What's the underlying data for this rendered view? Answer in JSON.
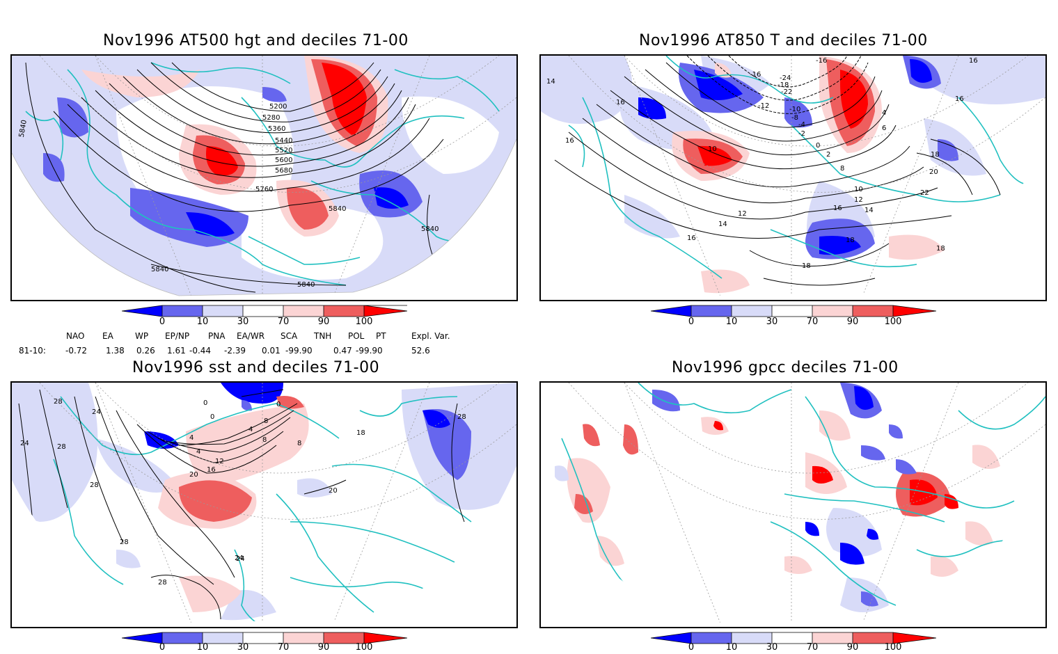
{
  "panels": [
    {
      "title": "Nov1996 AT500 hgt and deciles 71-00",
      "contour_labels": [
        "5200",
        "5280",
        "5360",
        "5440",
        "5520",
        "5600",
        "5680",
        "5760",
        "5840",
        "5840",
        "5840",
        "5840",
        "5840"
      ]
    },
    {
      "title": "Nov1996 AT850 T and deciles 71-00",
      "contour_labels": [
        "-16",
        "-16",
        "-18",
        "-22",
        "-24",
        "-12",
        "-10",
        "-8",
        "-4",
        "-2",
        "0",
        "2",
        "4",
        "6",
        "8",
        "10",
        "10",
        "12",
        "12",
        "14",
        "14",
        "14",
        "16",
        "16",
        "16",
        "16",
        "16",
        "16",
        "18",
        "18",
        "18",
        "18",
        "20",
        "22"
      ]
    },
    {
      "title": "Nov1996 sst and deciles 71-00",
      "contour_labels": [
        "28",
        "24",
        "24",
        "28",
        "28",
        "28",
        "24",
        "0",
        "0",
        "0",
        "4",
        "4",
        "4",
        "8",
        "8",
        "8",
        "12",
        "16",
        "20",
        "20",
        "24",
        "28",
        "28",
        "18"
      ]
    },
    {
      "title": "Nov1996 gpcc deciles 71-00",
      "contour_labels": []
    }
  ],
  "colorbar": {
    "labels": [
      "0",
      "10",
      "30",
      "70",
      "90",
      "100"
    ],
    "colors": [
      "#0000ff",
      "#6666ee",
      "#d8dbf8",
      "#ffffff",
      "#fbd4d4",
      "#ee5e5e",
      "#ff0000"
    ]
  },
  "indices": {
    "headers": [
      "NAO",
      "EA",
      "WP",
      "EP/NP",
      "PNA",
      "EA/WR",
      "SCA",
      "TNH",
      "POL",
      "PT",
      "Expl. Var."
    ],
    "row_label": "81-10:",
    "values": [
      "-0.72",
      "1.38",
      "0.26",
      "1.61",
      "-0.44",
      "-2.39",
      "0.01",
      "-99.90",
      "0.47",
      "-99.90",
      "52.6"
    ]
  },
  "map_colors": {
    "coast": "#20c0c0",
    "grid": "#9a9a9a"
  }
}
